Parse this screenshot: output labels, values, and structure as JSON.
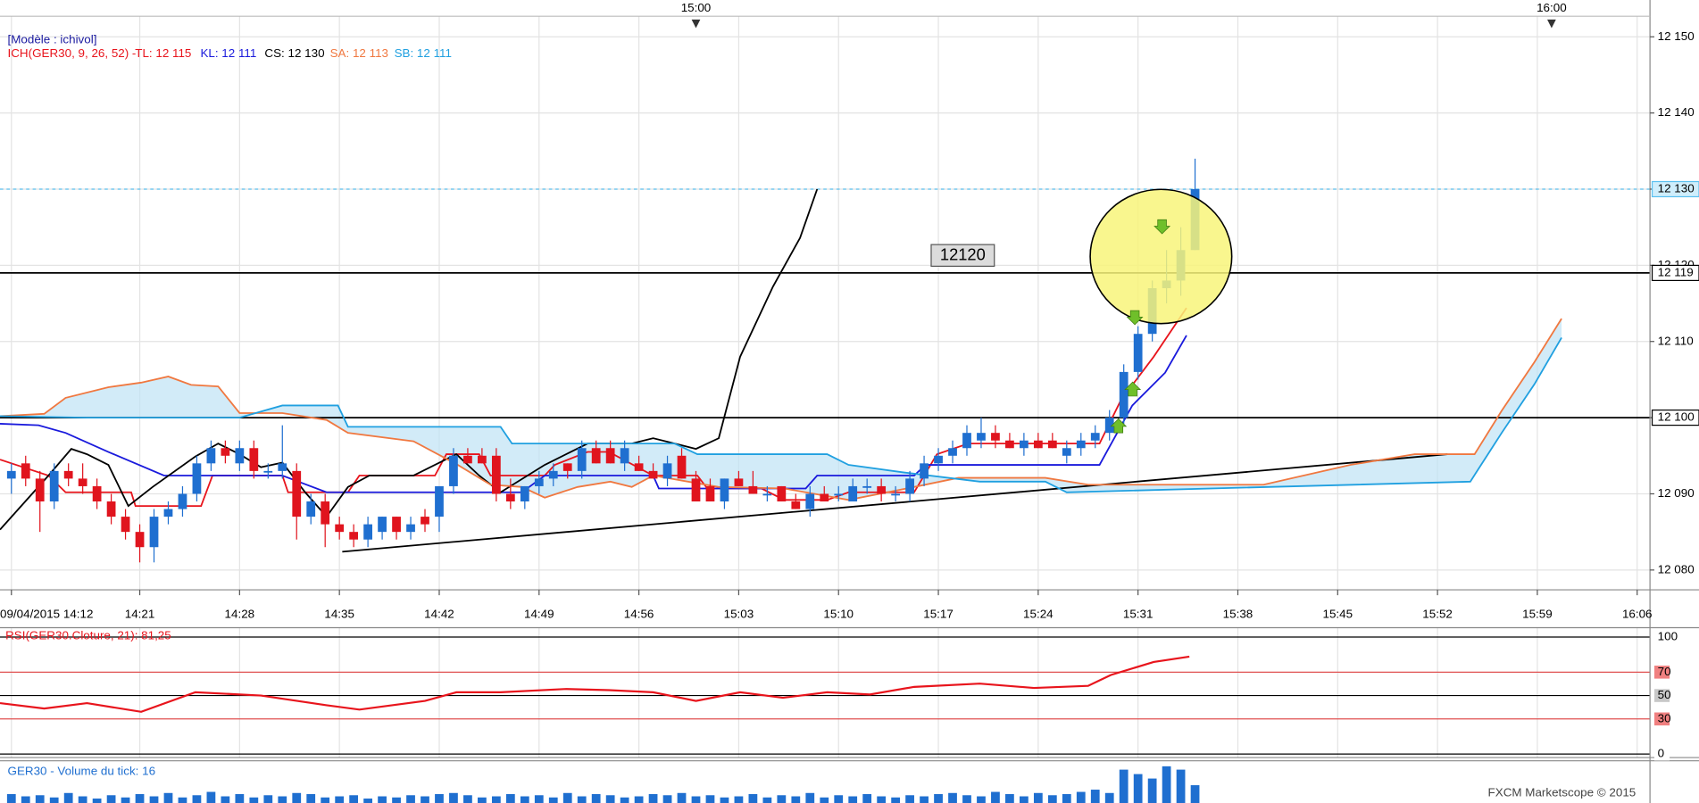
{
  "header": {
    "model": "[Modèle : ichivol]",
    "indicator": "ICH(GER30, 9, 26, 52) -",
    "legend": [
      {
        "text": "TL: 12 115",
        "color": "#e8141c"
      },
      {
        "text": "KL: 12 111",
        "color": "#1a1adc"
      },
      {
        "text": "CS: 12 130",
        "color": "#000000"
      },
      {
        "text": "SA: 12 113",
        "color": "#f07840"
      },
      {
        "text": "SB: 12 111",
        "color": "#20a0e0"
      }
    ],
    "watermark": "FXCM Marketscope © 2015"
  },
  "chart_data": [
    {
      "type": "candlestick",
      "up_color": "#1f6fd0",
      "down_color": "#e0141e",
      "grid": true,
      "xlim": [
        851.2,
        966.9
      ],
      "ylim": [
        12077.4,
        12152.7
      ],
      "yticks": [
        {
          "value": 12080,
          "label": "12 080"
        },
        {
          "value": 12090,
          "label": "12 090"
        },
        {
          "value": 12100,
          "label": "12 100"
        },
        {
          "value": 12110,
          "label": "12 110"
        },
        {
          "value": 12120,
          "label": "12 120"
        },
        {
          "value": 12130,
          "label": "12 130"
        },
        {
          "value": 12140,
          "label": "12 140"
        },
        {
          "value": 12150,
          "label": "12 150"
        }
      ],
      "xticks": [
        {
          "value": 852,
          "label": "09/04/2015 14:12"
        },
        {
          "value": 861,
          "label": "14:21"
        },
        {
          "value": 868,
          "label": "14:28"
        },
        {
          "value": 875,
          "label": "14:35"
        },
        {
          "value": 882,
          "label": "14:42"
        },
        {
          "value": 889,
          "label": "14:49"
        },
        {
          "value": 896,
          "label": "14:56"
        },
        {
          "value": 903,
          "label": "15:03"
        },
        {
          "value": 910,
          "label": "15:10"
        },
        {
          "value": 917,
          "label": "15:17"
        },
        {
          "value": 924,
          "label": "15:24"
        },
        {
          "value": 931,
          "label": "15:31"
        },
        {
          "value": 938,
          "label": "15:38"
        },
        {
          "value": 945,
          "label": "15:45"
        },
        {
          "value": 952,
          "label": "15:52"
        },
        {
          "value": 959,
          "label": "15:59"
        },
        {
          "value": 966,
          "label": "16:06"
        }
      ],
      "x2ticks": [
        {
          "value": 900,
          "label": "15:00"
        },
        {
          "value": 960,
          "label": "16:00"
        }
      ],
      "x": [
        852,
        853,
        854,
        855,
        856,
        857,
        858,
        859,
        860,
        861,
        862,
        863,
        864,
        865,
        866,
        867,
        868,
        869,
        870,
        871,
        872,
        873,
        874,
        875,
        876,
        877,
        878,
        879,
        880,
        881,
        882,
        883,
        884,
        885,
        886,
        887,
        888,
        889,
        890,
        891,
        892,
        893,
        894,
        895,
        896,
        897,
        898,
        899,
        900,
        901,
        902,
        903,
        904,
        905,
        906,
        907,
        908,
        909,
        910,
        911,
        912,
        913,
        914,
        915,
        916,
        917,
        918,
        919,
        920,
        921,
        922,
        923,
        924,
        925,
        926,
        927,
        928,
        929,
        930,
        931,
        932,
        933,
        934,
        935
      ],
      "open": [
        12092,
        12094,
        12092,
        12089,
        12093,
        12092,
        12091,
        12089,
        12087,
        12085,
        12083,
        12087,
        12088,
        12090,
        12094,
        12096,
        12094,
        12096,
        12093,
        12093,
        12093,
        12087,
        12089,
        12086,
        12085,
        12084,
        12085,
        12087,
        12085,
        12087,
        12087,
        12091,
        12095,
        12095,
        12095,
        12090,
        12089,
        12091,
        12092,
        12094,
        12093,
        12096,
        12096,
        12094,
        12094,
        12093,
        12092,
        12095,
        12092,
        12091,
        12089,
        12092,
        12091,
        12090,
        12091,
        12089,
        12088,
        12090,
        12090,
        12089,
        12091,
        12091,
        12090,
        12090,
        12092,
        12094,
        12095,
        12096,
        12097,
        12098,
        12097,
        12096,
        12097,
        12097,
        12095,
        12096,
        12097,
        12098,
        12100,
        12106,
        12111,
        12117,
        12118,
        12122
      ],
      "high": [
        12094,
        12095,
        12093,
        12094,
        12094,
        12094,
        12092,
        12090,
        12088,
        12086,
        12088,
        12089,
        12091,
        12095,
        12097,
        12097,
        12097,
        12097,
        12094,
        12099,
        12094,
        12090,
        12090,
        12087,
        12086,
        12087,
        12087,
        12087,
        12087,
        12088,
        12091,
        12096,
        12096,
        12096,
        12096,
        12092,
        12091,
        12093,
        12094,
        12094,
        12097,
        12097,
        12097,
        12097,
        12095,
        12094,
        12095,
        12096,
        12093,
        12092,
        12092,
        12093,
        12093,
        12091,
        12091,
        12090,
        12091,
        12091,
        12091,
        12092,
        12092,
        12092,
        12091,
        12093,
        12095,
        12096,
        12097,
        12099,
        12100,
        12099,
        12098,
        12098,
        12098,
        12098,
        12097,
        12098,
        12099,
        12101,
        12107,
        12112,
        12118,
        12122,
        12125,
        12134
      ],
      "low": [
        12090,
        12091,
        12085,
        12088,
        12091,
        12090,
        12088,
        12086,
        12084,
        12081,
        12081,
        12086,
        12087,
        12089,
        12093,
        12094,
        12093,
        12092,
        12092,
        12092,
        12084,
        12086,
        12083,
        12084,
        12083,
        12083,
        12084,
        12084,
        12084,
        12085,
        12085,
        12090,
        12094,
        12094,
        12089,
        12088,
        12088,
        12090,
        12091,
        12092,
        12092,
        12094,
        12094,
        12093,
        12093,
        12092,
        12091,
        12092,
        12089,
        12089,
        12088,
        12091,
        12090,
        12089,
        12089,
        12088,
        12087,
        12089,
        12089,
        12089,
        12090,
        12089,
        12089,
        12089,
        12091,
        12093,
        12094,
        12095,
        12096,
        12096,
        12096,
        12095,
        12096,
        12096,
        12094,
        12095,
        12096,
        12097,
        12099,
        12105,
        12110,
        12115,
        12116,
        12122
      ],
      "close": [
        12093,
        12092,
        12089,
        12093,
        12092,
        12091,
        12089,
        12087,
        12085,
        12083,
        12087,
        12088,
        12090,
        12094,
        12096,
        12095,
        12096,
        12093,
        12093,
        12094,
        12087,
        12089,
        12086,
        12085,
        12084,
        12086,
        12087,
        12085,
        12086,
        12086,
        12091,
        12095,
        12094,
        12094,
        12090,
        12089,
        12091,
        12092,
        12093,
        12093,
        12096,
        12094,
        12094,
        12096,
        12093,
        12092,
        12094,
        12092,
        12089,
        12089,
        12092,
        12091,
        12090,
        12090,
        12089,
        12088,
        12090,
        12089,
        12090,
        12091,
        12091,
        12090,
        12090,
        12092,
        12094,
        12095,
        12096,
        12098,
        12098,
        12097,
        12096,
        12097,
        12096,
        12096,
        12096,
        12097,
        12098,
        12100,
        12106,
        12111,
        12117,
        12118,
        12122,
        12130
      ],
      "series": [
        {
          "color": "#e8141c",
          "x": [
            851.2,
            854.6,
            855.8,
            860.4,
            860.7,
            865.3,
            866.1,
            871.0,
            871.4,
            875.6,
            876.4,
            881.7,
            882.5,
            884.8,
            885.6,
            889.4,
            890.1,
            892.4,
            893.9,
            897.0,
            900.1,
            900.8,
            904.6,
            906.2,
            909.2,
            910.7,
            915.3,
            916.9,
            919.1,
            928.3,
            929.8,
            932.1,
            934.4
          ],
          "values": [
            12094.5,
            12092.4,
            12090.2,
            12090.2,
            12088.4,
            12088.4,
            12092.4,
            12092.4,
            12090.2,
            12090.2,
            12092.4,
            12092.4,
            12095.2,
            12095.2,
            12092.4,
            12092.4,
            12093.8,
            12095.5,
            12095.5,
            12092.4,
            12092.4,
            12090.7,
            12090.7,
            12089.2,
            12089.2,
            12090.2,
            12090.2,
            12095.2,
            12096.6,
            12096.6,
            12102.3,
            12108,
            12114.4
          ]
        },
        {
          "color": "#1a1adc",
          "x": [
            851.2,
            853.9,
            855.8,
            858.8,
            862.7,
            871.0,
            874.1,
            887.8,
            889.4,
            897.0,
            897.4,
            907.7,
            908.5,
            915.3,
            916.1,
            928.3,
            930.6,
            932.9,
            934.4
          ],
          "values": [
            12099.2,
            12099,
            12098,
            12095.5,
            12092.4,
            12092.4,
            12090.2,
            12090.2,
            12092.4,
            12092.4,
            12090.7,
            12090.7,
            12092.4,
            12092.4,
            12093.8,
            12093.8,
            12101.6,
            12105.9,
            12110.8
          ]
        },
        {
          "color": "#000000",
          "x": [
            851.2,
            854.6,
            856.2,
            857.3,
            858.8,
            860.2,
            861.9,
            864.9,
            866.5,
            868.0,
            869.5,
            871.0,
            872.6,
            874.1,
            875.6,
            877.1,
            880.2,
            883.2,
            884.8,
            886.3,
            889.4,
            892.4,
            895.5,
            897.0,
            900.0,
            901.6,
            903.1,
            905.4,
            907.3,
            908.5
          ],
          "values": [
            12085.3,
            12092.4,
            12095.9,
            12095.2,
            12093.8,
            12088.4,
            12090.9,
            12094.9,
            12096.6,
            12095.2,
            12093.5,
            12094.1,
            12090.2,
            12087,
            12090.9,
            12092.4,
            12092.4,
            12095.2,
            12092.4,
            12090.2,
            12093.8,
            12096.6,
            12096.6,
            12097.3,
            12095.9,
            12097.3,
            12108,
            12117.2,
            12123.6,
            12130
          ]
        },
        {
          "color": "#f07840",
          "x": [
            851.2,
            854.3,
            855.8,
            858.8,
            861.1,
            863.0,
            864.6,
            866.5,
            868.0,
            871.0,
            874.1,
            875.6,
            880.2,
            883.3,
            885.6,
            887.8,
            889.4,
            891.7,
            894.0,
            895.5,
            897.0,
            901.6,
            906.2,
            910.7,
            915.3,
            918.4,
            924.5,
            927.5,
            939.8,
            945.9,
            950.4,
            954.6,
            956.5,
            958.8,
            960.7
          ],
          "values": [
            12100.2,
            12100.5,
            12102.6,
            12104,
            12104.6,
            12105.4,
            12104.3,
            12104.1,
            12100.6,
            12100.6,
            12099.7,
            12098,
            12096.9,
            12093.8,
            12091.2,
            12090.9,
            12089.5,
            12090.9,
            12091.6,
            12090.9,
            12092.4,
            12090.9,
            12090.7,
            12089.2,
            12090.9,
            12092.1,
            12092.1,
            12091.2,
            12091.2,
            12093.8,
            12095.2,
            12095.2,
            12100.9,
            12107.3,
            12113
          ]
        },
        {
          "color": "#20a0e0",
          "x": [
            851.2,
            857.3,
            868.0,
            871.0,
            874.9,
            875.6,
            886.3,
            887.1,
            898.5,
            900.1,
            909.2,
            910.7,
            914.6,
            919.9,
            924.5,
            926.0,
            954.3,
            956.5,
            958.8,
            960.7
          ],
          "values": [
            12100.2,
            12100,
            12100,
            12101.6,
            12101.6,
            12098.8,
            12098.8,
            12096.6,
            12096.6,
            12095.2,
            12095.2,
            12093.8,
            12092.8,
            12091.6,
            12091.6,
            12090.2,
            12091.6,
            12098,
            12104.4,
            12110.5
          ]
        }
      ],
      "cloud_color": "#bfe3f5",
      "trendline": {
        "color": "#000000",
        "x": [
          875.2,
          952.7
        ],
        "values": [
          12082.4,
          12095.2
        ]
      },
      "hlines": [
        {
          "value": 12130,
          "label": "12 130",
          "color": "#5bc0f0",
          "dashed": true
        },
        {
          "value": 12119,
          "label": "12 119",
          "color": "#000000"
        },
        {
          "value": 12100,
          "label": "12 100",
          "color": "#000000"
        }
      ],
      "annotation": "12120"
    },
    {
      "type": "line",
      "title": "RSI(GER30.Cloture, 21): 81,25",
      "color": "#e8141c",
      "ylim": [
        -3,
        108
      ],
      "yticks": [
        100,
        70,
        50,
        30,
        0
      ],
      "ytick_colors": [
        "#000000",
        "#e05050",
        "#000000",
        "#e05050",
        "#000000"
      ],
      "x": [
        851.2,
        854.3,
        857.3,
        861.1,
        864.9,
        869.5,
        874.1,
        876.4,
        881.0,
        883.2,
        886.3,
        890.9,
        893.9,
        897.0,
        900.0,
        903.1,
        906.1,
        909.2,
        912.2,
        915.3,
        919.9,
        923.7,
        927.5,
        929.1,
        932.1,
        934.6
      ],
      "values": [
        43.5,
        38.9,
        43.5,
        36.1,
        52.8,
        50,
        41.7,
        38,
        45.4,
        52.8,
        52.8,
        55.6,
        54.6,
        52.8,
        45.4,
        52.8,
        48.1,
        52.8,
        50.9,
        57.4,
        60.2,
        56.5,
        58.3,
        67.6,
        78.7,
        83.3
      ]
    },
    {
      "type": "bar",
      "title": "GER30 - Volume du tick: 16",
      "color": "#1f6fd0",
      "ylim": [
        0,
        36
      ],
      "values": [
        8,
        6,
        7,
        5,
        9,
        6,
        4,
        7,
        5,
        8,
        6,
        9,
        5,
        7,
        10,
        6,
        8,
        5,
        7,
        6,
        9,
        8,
        5,
        6,
        7,
        4,
        6,
        5,
        7,
        6,
        8,
        9,
        7,
        5,
        6,
        8,
        6,
        7,
        5,
        9,
        6,
        8,
        7,
        5,
        6,
        8,
        7,
        9,
        6,
        7,
        5,
        6,
        8,
        5,
        7,
        6,
        9,
        5,
        7,
        6,
        8,
        6,
        5,
        7,
        6,
        8,
        9,
        7,
        6,
        10,
        8,
        6,
        9,
        7,
        8,
        10,
        12,
        9,
        30,
        26,
        22,
        33,
        30,
        16
      ]
    }
  ]
}
